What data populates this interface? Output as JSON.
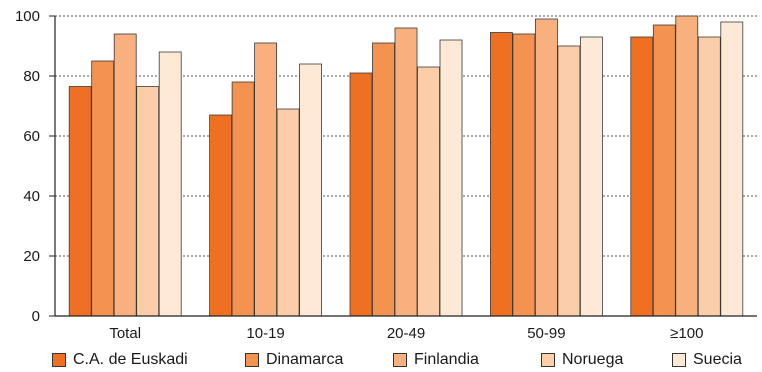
{
  "chart_data": {
    "type": "bar",
    "categories": [
      "Total",
      "10-19",
      "20-49",
      "50-99",
      "≥100"
    ],
    "series": [
      {
        "name": "C.A. de Euskadi",
        "color": "#f07023",
        "values": [
          76.5,
          67,
          81,
          94.5,
          93
        ]
      },
      {
        "name": "Dinamarca",
        "color": "#f4934f",
        "values": [
          85,
          78,
          91,
          94,
          97
        ]
      },
      {
        "name": "Finlandia",
        "color": "#f8b07e",
        "values": [
          94,
          91,
          96,
          99,
          100
        ]
      },
      {
        "name": "Noruega",
        "color": "#fbcda9",
        "values": [
          76.5,
          69,
          83,
          90,
          93
        ]
      },
      {
        "name": "Suecia",
        "color": "#fde9d6",
        "values": [
          88,
          84,
          92,
          93,
          98
        ]
      }
    ],
    "ylim": [
      0,
      100
    ],
    "yticks": [
      0,
      20,
      40,
      60,
      80,
      100
    ],
    "grid": "horizontal dotted",
    "legend_position": "bottom"
  }
}
